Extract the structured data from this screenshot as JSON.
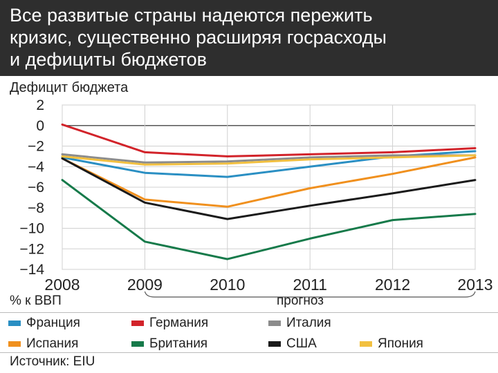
{
  "header": {
    "title_lines": [
      "Все развитые страны надеются пережить",
      "кризис, существенно расширяя госрасходы",
      "и дефициты бюджетов"
    ]
  },
  "chart_data": {
    "type": "line",
    "title": "Дефицит бюджета",
    "ylabel": "% к ВВП",
    "x": [
      2008,
      2009,
      2010,
      2011,
      2012,
      2013
    ],
    "x_tick_labels": [
      "2008",
      "2009",
      "2010",
      "2011",
      "2012",
      "2013"
    ],
    "ylim": [
      -14,
      2
    ],
    "y_ticks": [
      2,
      0,
      -2,
      -4,
      -6,
      -8,
      -10,
      -12,
      -14
    ],
    "y_tick_labels": [
      "2",
      "0",
      "−2",
      "−4",
      "−6",
      "−8",
      "−10",
      "−12",
      "−14"
    ],
    "grid": true,
    "forecast_label": "прогноз",
    "forecast_range": [
      2009,
      2013
    ],
    "series": [
      {
        "name": "Франция",
        "color": "#2a8fc3",
        "values": [
          -3.1,
          -4.6,
          -5.0,
          -4.0,
          -3.0,
          -2.5
        ]
      },
      {
        "name": "Германия",
        "color": "#d2232a",
        "values": [
          0.1,
          -2.6,
          -3.0,
          -2.8,
          -2.6,
          -2.2
        ]
      },
      {
        "name": "Италия",
        "color": "#8c8c8c",
        "values": [
          -2.8,
          -3.6,
          -3.5,
          -3.1,
          -2.9,
          -2.9
        ]
      },
      {
        "name": "Испания",
        "color": "#f0901e",
        "values": [
          -3.2,
          -7.2,
          -7.9,
          -6.1,
          -4.7,
          -3.1
        ]
      },
      {
        "name": "Британия",
        "color": "#167a4a",
        "values": [
          -5.3,
          -11.3,
          -13.0,
          -11.0,
          -9.2,
          -8.6
        ]
      },
      {
        "name": "США",
        "color": "#1a1a1a",
        "values": [
          -3.2,
          -7.5,
          -9.1,
          -7.8,
          -6.6,
          -5.3
        ]
      },
      {
        "name": "Япония",
        "color": "#f2c040",
        "values": [
          -3.0,
          -3.8,
          -3.7,
          -3.3,
          -3.1,
          -2.9
        ]
      }
    ],
    "source": "Источник: EIU"
  }
}
